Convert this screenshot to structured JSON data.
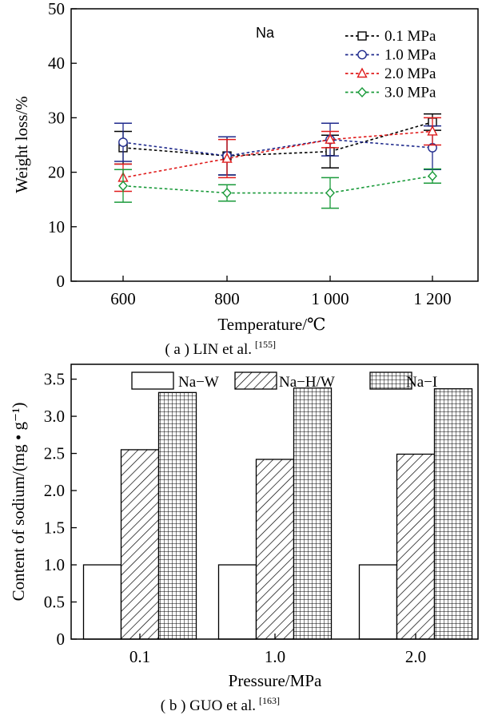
{
  "chart_data": [
    {
      "type": "line",
      "annotation": "Na",
      "xlabel": "Temperature/℃",
      "ylabel": "Weight loss/%",
      "caption": "( a ) LIN et al.",
      "caption_ref": "[155]",
      "x": [
        600,
        800,
        1000,
        1200
      ],
      "x_tick_labels": [
        "600",
        "800",
        "1 000",
        "1 200"
      ],
      "ylim": [
        0,
        50
      ],
      "y_ticks": [
        0,
        10,
        20,
        30,
        40,
        50
      ],
      "legend_position": "top-right",
      "series": [
        {
          "name": "0.1 MPa",
          "marker": "square",
          "color": "#000000",
          "values": [
            24.5,
            23.0,
            23.8,
            29.2
          ],
          "err": [
            3.0,
            3.5,
            3.0,
            1.5
          ]
        },
        {
          "name": "1.0 MPa",
          "marker": "circle",
          "color": "#1f2a8c",
          "values": [
            25.5,
            23.0,
            26.0,
            24.5
          ],
          "err": [
            3.5,
            3.5,
            3.0,
            4.0
          ]
        },
        {
          "name": "2.0 MPa",
          "marker": "triangle",
          "color": "#e01b1b",
          "values": [
            19.0,
            22.5,
            26.0,
            27.5
          ],
          "err": [
            2.5,
            3.5,
            1.5,
            2.5
          ]
        },
        {
          "name": "3.0 MPa",
          "marker": "diamond",
          "color": "#1a9a3a",
          "values": [
            17.5,
            16.2,
            16.2,
            19.3
          ],
          "err": [
            3.0,
            1.5,
            2.8,
            1.3
          ]
        }
      ]
    },
    {
      "type": "bar",
      "xlabel": "Pressure/MPa",
      "ylabel": "Content of sodium/(mg • g⁻¹)",
      "caption": "( b ) GUO et al.",
      "caption_ref": "[163]",
      "categories": [
        "0.1",
        "1.0",
        "2.0"
      ],
      "ylim": [
        0,
        3.7
      ],
      "y_ticks": [
        "0",
        "0.5",
        "1.0",
        "1.5",
        "2.0",
        "2.5",
        "3.0",
        "3.5"
      ],
      "legend_position": "top",
      "series": [
        {
          "name": "Na−W",
          "pattern": "blank",
          "values": [
            1.0,
            1.0,
            1.0
          ]
        },
        {
          "name": "Na−H/W",
          "pattern": "hatch",
          "values": [
            2.55,
            2.42,
            2.49
          ]
        },
        {
          "name": "Na−I",
          "pattern": "grid",
          "values": [
            3.32,
            3.38,
            3.37
          ]
        }
      ]
    }
  ]
}
